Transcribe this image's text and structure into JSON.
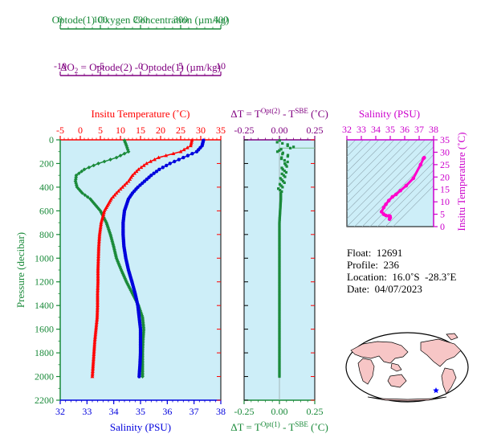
{
  "colors": {
    "oxygen": "#1a8a3a",
    "delta": "#800080",
    "temperature": "#ff0000",
    "salinity": "#0000dd",
    "ts": "#ff00cc",
    "panel_bg": "#cdeef8",
    "text": "#000000"
  },
  "labels": {
    "oxygen_axis": "Optode(1) Oxygen Concentration (µm/kg)",
    "delta_axis_prefix": "ΔO",
    "delta_axis_sub": "2",
    "delta_axis_rest": " = Optode(2) - Optode(1)    (µm/kg)",
    "temp_axis": "Insitu Temperature (˚C)",
    "pressure_axis": "Pressure (decibar)",
    "salinity_axis": "Salinity (PSU)",
    "dt_top_a": "ΔT = T",
    "dt_top_sup": "Opt(2)",
    "dt_top_b": " - T",
    "dt_top_sup2": "SBE",
    "dt_top_c": " (˚C)",
    "dt_bot_a": "ΔT = T",
    "dt_bot_sup": "Opt(1)",
    "dt_bot_b": " - T",
    "dt_bot_sup2": "SBE",
    "dt_bot_c": " (˚C)",
    "ts_top": "Salinity (PSU)",
    "ts_right": "Insitu Temperature (˚C)"
  },
  "info": {
    "float": "Float:  12691",
    "profile": "Profile:  236",
    "location": "Location:  16.0˚S  -28.3˚E",
    "date": "Date:  04/07/2023"
  },
  "chart_data": [
    {
      "type": "line",
      "panel": "profile",
      "ylabel": "Pressure (decibar)",
      "ylim": [
        2200,
        0
      ],
      "yticks": [
        0,
        200,
        400,
        600,
        800,
        1000,
        1200,
        1400,
        1600,
        1800,
        2000,
        2200
      ],
      "axes": {
        "oxygen": {
          "label": "Optode(1) Oxygen Concentration (µm/kg)",
          "lim": [
            0,
            400
          ],
          "ticks": [
            0,
            100,
            200,
            300,
            400
          ]
        },
        "delta_o2": {
          "label": "ΔO2 = Optode(2) - Optode(1) (µm/kg)",
          "lim": [
            -10,
            10
          ],
          "ticks": [
            -10,
            -5,
            0,
            5,
            10
          ]
        },
        "temperature": {
          "label": "Insitu Temperature (˚C)",
          "lim": [
            -5,
            35
          ],
          "ticks": [
            -5,
            0,
            5,
            10,
            15,
            20,
            25,
            30,
            35
          ]
        },
        "salinity": {
          "label": "Salinity (PSU)",
          "lim": [
            32,
            38
          ],
          "ticks": [
            32,
            33,
            34,
            35,
            36,
            37,
            38
          ]
        }
      },
      "series": [
        {
          "name": "Oxygen",
          "axis": "oxygen",
          "pressure": [
            5,
            50,
            100,
            150,
            200,
            250,
            300,
            350,
            400,
            450,
            500,
            600,
            700,
            800,
            900,
            1000,
            1100,
            1200,
            1300,
            1400,
            1500,
            1600,
            1700,
            1800,
            1900,
            2000
          ],
          "values": [
            160,
            165,
            170,
            140,
            95,
            60,
            40,
            38,
            42,
            55,
            75,
            100,
            115,
            125,
            133,
            140,
            152,
            165,
            180,
            195,
            205,
            208,
            206,
            205,
            205,
            205
          ]
        },
        {
          "name": "Temperature",
          "axis": "temperature",
          "pressure": [
            5,
            50,
            100,
            150,
            200,
            250,
            300,
            350,
            400,
            450,
            500,
            600,
            700,
            800,
            900,
            1000,
            1100,
            1200,
            1300,
            1400,
            1500,
            1600,
            1700,
            1800,
            1900,
            2000
          ],
          "values": [
            27.8,
            27.5,
            25.0,
            19.5,
            16.5,
            14.5,
            13.0,
            12.0,
            10.5,
            9.0,
            7.7,
            6.0,
            5.2,
            4.8,
            4.6,
            4.5,
            4.4,
            4.4,
            4.3,
            4.3,
            4.2,
            3.9,
            3.6,
            3.4,
            3.2,
            3.0
          ]
        },
        {
          "name": "Salinity",
          "axis": "salinity",
          "pressure": [
            5,
            50,
            100,
            150,
            200,
            250,
            300,
            350,
            400,
            450,
            500,
            600,
            700,
            800,
            900,
            1000,
            1100,
            1200,
            1300,
            1400,
            1500,
            1600,
            1700,
            1800,
            1900,
            2000
          ],
          "values": [
            37.35,
            37.3,
            37.1,
            36.6,
            36.1,
            35.7,
            35.4,
            35.15,
            34.9,
            34.7,
            34.55,
            34.4,
            34.35,
            34.35,
            34.38,
            34.45,
            34.55,
            34.68,
            34.8,
            34.9,
            34.95,
            35.0,
            35.0,
            35.0,
            34.98,
            34.95
          ]
        }
      ]
    },
    {
      "type": "scatter",
      "panel": "delta_t",
      "ylim": [
        2200,
        0
      ],
      "xlim": [
        -0.25,
        0.25
      ],
      "xticks_top": [
        -0.25,
        0.0,
        0.25
      ],
      "xticks_bottom": [
        -0.25,
        0.0,
        0.25
      ],
      "tick_labels_top": [
        "-0.25",
        "0.00",
        "0.25"
      ],
      "tick_labels_bottom": [
        "-0.25",
        "0.00",
        "0.25"
      ],
      "series": [
        {
          "name": "Opt(1)",
          "pressure": [
            5,
            20,
            40,
            60,
            80,
            100,
            130,
            160,
            200,
            250,
            300,
            350,
            400,
            500,
            600,
            700,
            800,
            900,
            1000,
            1100,
            1200,
            1300,
            1400,
            1500,
            1600,
            1700,
            1800,
            1900,
            2000
          ],
          "values": [
            0.02,
            -0.01,
            0.04,
            0.1,
            0.03,
            -0.02,
            0.06,
            0.02,
            0.05,
            0.03,
            0.03,
            0.02,
            0.01,
            0.01,
            0.005,
            0.0,
            0.0,
            0.0,
            0.0,
            0.0,
            0.0,
            0.0,
            0.0,
            0.0,
            0.0,
            0.0,
            0.0,
            0.0,
            0.0
          ]
        }
      ]
    },
    {
      "type": "scatter",
      "panel": "ts",
      "xlabel": "Salinity (PSU)",
      "ylabel": "Insitu Temperature (˚C)",
      "xlim": [
        32,
        38
      ],
      "ylim": [
        0,
        35
      ],
      "xticks": [
        32,
        33,
        34,
        35,
        36,
        37,
        38
      ],
      "yticks": [
        0,
        5,
        10,
        15,
        20,
        25,
        30,
        35
      ],
      "series": [
        {
          "name": "TS",
          "x": [
            34.95,
            35.0,
            34.98,
            34.9,
            34.7,
            34.55,
            34.4,
            34.55,
            34.7,
            34.9,
            35.15,
            35.4,
            35.7,
            36.1,
            36.6,
            37.1,
            37.3,
            37.35
          ],
          "y": [
            3.0,
            3.6,
            4.2,
            4.3,
            4.5,
            5.0,
            6.0,
            7.7,
            9.0,
            10.5,
            12.0,
            13.0,
            14.5,
            16.5,
            19.5,
            25.0,
            27.5,
            27.8
          ]
        }
      ]
    }
  ]
}
